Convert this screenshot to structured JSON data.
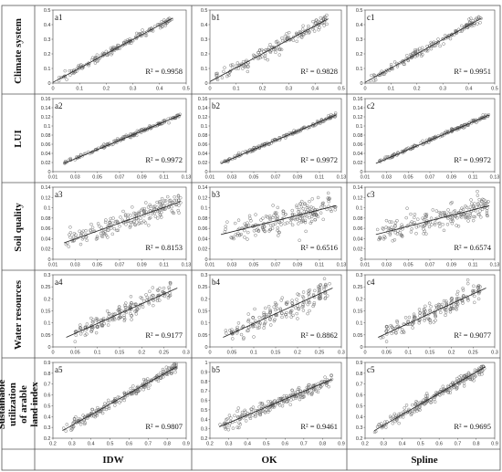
{
  "row_labels": [
    "Climate system",
    "LUI",
    "Soil quality",
    "Water resources",
    "Sustainable utilization of arable land index"
  ],
  "column_labels": [
    "IDW",
    "OK",
    "Spline"
  ],
  "chart_data": [
    {
      "type": "scatter",
      "panel": "a1",
      "r2": "R² = 0.9958",
      "x_ticks": [
        "0",
        "0.1",
        "0.2",
        "0.3",
        "0.4",
        "0.5"
      ],
      "y_ticks": [
        "0",
        "0.1",
        "0.2",
        "0.3",
        "0.4",
        "0.5"
      ],
      "xlim": [
        0,
        0.5
      ],
      "ylim": [
        0,
        0.5
      ],
      "fit": [
        [
          0,
          0.005
        ],
        [
          0.45,
          0.445
        ]
      ],
      "cloud": {
        "x_range": [
          0.02,
          0.45
        ],
        "slope": 0.98,
        "intercept": 0.005,
        "noise": 0.012,
        "n": 160
      }
    },
    {
      "type": "scatter",
      "panel": "b1",
      "r2": "R² = 0.9828",
      "x_ticks": [
        "0",
        "0.1",
        "0.2",
        "0.3",
        "0.4",
        "0.5"
      ],
      "y_ticks": [
        "0",
        "0.1",
        "0.2",
        "0.3",
        "0.4",
        "0.5"
      ],
      "xlim": [
        0,
        0.5
      ],
      "ylim": [
        0,
        0.5
      ],
      "fit": [
        [
          0,
          0.01
        ],
        [
          0.45,
          0.44
        ]
      ],
      "cloud": {
        "x_range": [
          0.02,
          0.45
        ],
        "slope": 0.96,
        "intercept": 0.01,
        "noise": 0.025,
        "n": 160
      }
    },
    {
      "type": "scatter",
      "panel": "c1",
      "r2": "R² = 0.9951",
      "x_ticks": [
        "0",
        "0.1",
        "0.2",
        "0.3",
        "0.4",
        "0.5"
      ],
      "y_ticks": [
        "0",
        "0.1",
        "0.2",
        "0.3",
        "0.4",
        "0.5"
      ],
      "xlim": [
        0,
        0.5
      ],
      "ylim": [
        0,
        0.5
      ],
      "fit": [
        [
          0,
          0.005
        ],
        [
          0.45,
          0.445
        ]
      ],
      "cloud": {
        "x_range": [
          0.02,
          0.45
        ],
        "slope": 0.98,
        "intercept": 0.005,
        "noise": 0.014,
        "n": 160
      }
    },
    {
      "type": "scatter",
      "panel": "a2",
      "r2": "R² = 0.9972",
      "x_ticks": [
        "0.01",
        "0.03",
        "0.05",
        "0.07",
        "0.09",
        "0.11",
        "0.13"
      ],
      "y_ticks": [
        "0",
        "0.02",
        "0.04",
        "0.06",
        "0.08",
        "0.1",
        "0.12",
        "0.14",
        "0.16"
      ],
      "xlim": [
        0.01,
        0.13
      ],
      "ylim": [
        0,
        0.16
      ],
      "fit": [
        [
          0.02,
          0.018
        ],
        [
          0.125,
          0.124
        ]
      ],
      "cloud": {
        "x_range": [
          0.02,
          0.125
        ],
        "slope": 1.0,
        "intercept": -0.001,
        "noise": 0.002,
        "n": 160
      }
    },
    {
      "type": "scatter",
      "panel": "b2",
      "r2": "R² = 0.9972",
      "x_ticks": [
        "0.01",
        "0.03",
        "0.05",
        "0.07",
        "0.09",
        "0.11",
        "0.13"
      ],
      "y_ticks": [
        "0",
        "0.02",
        "0.04",
        "0.06",
        "0.08",
        "0.1",
        "0.12",
        "0.14",
        "0.16"
      ],
      "xlim": [
        0.01,
        0.13
      ],
      "ylim": [
        0,
        0.16
      ],
      "fit": [
        [
          0.02,
          0.018
        ],
        [
          0.125,
          0.124
        ]
      ],
      "cloud": {
        "x_range": [
          0.02,
          0.125
        ],
        "slope": 1.0,
        "intercept": -0.001,
        "noise": 0.002,
        "n": 160
      }
    },
    {
      "type": "scatter",
      "panel": "c2",
      "r2": "R² = 0.9972",
      "x_ticks": [
        "0.01",
        "0.03",
        "0.05",
        "0.07",
        "0.09",
        "0.11",
        "0.13"
      ],
      "y_ticks": [
        "0",
        "0.02",
        "0.04",
        "0.06",
        "0.08",
        "0.1",
        "0.12",
        "0.14",
        "0.16"
      ],
      "xlim": [
        0.01,
        0.13
      ],
      "ylim": [
        0,
        0.16
      ],
      "fit": [
        [
          0.02,
          0.018
        ],
        [
          0.125,
          0.124
        ]
      ],
      "cloud": {
        "x_range": [
          0.02,
          0.125
        ],
        "slope": 1.0,
        "intercept": -0.001,
        "noise": 0.002,
        "n": 160
      }
    },
    {
      "type": "scatter",
      "panel": "a3",
      "r2": "R² = 0.8153",
      "x_ticks": [
        "0.01",
        "0.03",
        "0.05",
        "0.07",
        "0.09",
        "0.11",
        "0.13"
      ],
      "y_ticks": [
        "0",
        "0.02",
        "0.04",
        "0.06",
        "0.08",
        "0.1",
        "0.12",
        "0.14"
      ],
      "xlim": [
        0.01,
        0.13
      ],
      "ylim": [
        0,
        0.14
      ],
      "fit": [
        [
          0.02,
          0.032
        ],
        [
          0.125,
          0.112
        ]
      ],
      "cloud": {
        "x_range": [
          0.02,
          0.125
        ],
        "slope": 0.76,
        "intercept": 0.017,
        "noise": 0.009,
        "n": 200
      }
    },
    {
      "type": "scatter",
      "panel": "b3",
      "r2": "R² = 0.6516",
      "x_ticks": [
        "0.01",
        "0.03",
        "0.05",
        "0.07",
        "0.09",
        "0.11",
        "0.13"
      ],
      "y_ticks": [
        "0",
        "0.02",
        "0.04",
        "0.06",
        "0.08",
        "0.1",
        "0.12",
        "0.14"
      ],
      "xlim": [
        0.01,
        0.13
      ],
      "ylim": [
        0,
        0.14
      ],
      "fit": [
        [
          0.02,
          0.048
        ],
        [
          0.125,
          0.104
        ]
      ],
      "cloud": {
        "x_range": [
          0.02,
          0.125
        ],
        "slope": 0.53,
        "intercept": 0.037,
        "noise": 0.011,
        "n": 200
      }
    },
    {
      "type": "scatter",
      "panel": "c3",
      "r2": "R² = 0.6574",
      "x_ticks": [
        "0.01",
        "0.03",
        "0.05",
        "0.07",
        "0.09",
        "0.11",
        "0.13"
      ],
      "y_ticks": [
        "0",
        "0.02",
        "0.04",
        "0.06",
        "0.08",
        "0.1",
        "0.12",
        "0.14"
      ],
      "xlim": [
        0.01,
        0.13
      ],
      "ylim": [
        0,
        0.14
      ],
      "fit": [
        [
          0.02,
          0.048
        ],
        [
          0.125,
          0.104
        ]
      ],
      "cloud": {
        "x_range": [
          0.02,
          0.125
        ],
        "slope": 0.53,
        "intercept": 0.037,
        "noise": 0.011,
        "n": 200
      }
    },
    {
      "type": "scatter",
      "panel": "a4",
      "r2": "R² = 0.9177",
      "x_ticks": [
        "0",
        "0.05",
        "0.1",
        "0.15",
        "0.2",
        "0.25",
        "0.3"
      ],
      "y_ticks": [
        "0",
        "0.05",
        "0.1",
        "0.15",
        "0.2",
        "0.25",
        "0.3"
      ],
      "xlim": [
        0,
        0.3
      ],
      "ylim": [
        0,
        0.3
      ],
      "fit": [
        [
          0.03,
          0.04
        ],
        [
          0.28,
          0.245
        ]
      ],
      "cloud": {
        "x_range": [
          0.04,
          0.27
        ],
        "slope": 0.82,
        "intercept": 0.016,
        "noise": 0.018,
        "n": 180,
        "banded": true
      }
    },
    {
      "type": "scatter",
      "panel": "b4",
      "r2": "R² = 0.8862",
      "x_ticks": [
        "0",
        "0.05",
        "0.1",
        "0.15",
        "0.2",
        "0.25",
        "0.3"
      ],
      "y_ticks": [
        "0",
        "0.05",
        "0.1",
        "0.15",
        "0.2",
        "0.25",
        "0.3"
      ],
      "xlim": [
        0,
        0.3
      ],
      "ylim": [
        0,
        0.3
      ],
      "fit": [
        [
          0.03,
          0.04
        ],
        [
          0.28,
          0.245
        ]
      ],
      "cloud": {
        "x_range": [
          0.04,
          0.27
        ],
        "slope": 0.82,
        "intercept": 0.016,
        "noise": 0.022,
        "n": 180,
        "banded": true
      }
    },
    {
      "type": "scatter",
      "panel": "c4",
      "r2": "R² = 0.9077",
      "x_ticks": [
        "0",
        "0.05",
        "0.1",
        "0.15",
        "0.2",
        "0.25",
        "0.3"
      ],
      "y_ticks": [
        "0",
        "0.05",
        "0.1",
        "0.15",
        "0.2",
        "0.25",
        "0.3"
      ],
      "xlim": [
        0,
        0.3
      ],
      "ylim": [
        0,
        0.3
      ],
      "fit": [
        [
          0.03,
          0.04
        ],
        [
          0.28,
          0.245
        ]
      ],
      "cloud": {
        "x_range": [
          0.04,
          0.27
        ],
        "slope": 0.82,
        "intercept": 0.016,
        "noise": 0.019,
        "n": 180,
        "banded": true
      }
    },
    {
      "type": "scatter",
      "panel": "a5",
      "r2": "R² = 0.9807",
      "x_ticks": [
        "0.2",
        "0.3",
        "0.4",
        "0.5",
        "0.6",
        "0.7",
        "0.8",
        "0.9"
      ],
      "y_ticks": [
        "0.2",
        "0.3",
        "0.4",
        "0.5",
        "0.6",
        "0.7",
        "0.8",
        "0.9"
      ],
      "xlim": [
        0.2,
        0.9
      ],
      "ylim": [
        0.2,
        0.9
      ],
      "fit": [
        [
          0.25,
          0.27
        ],
        [
          0.85,
          0.86
        ]
      ],
      "cloud": {
        "x_range": [
          0.25,
          0.85
        ],
        "slope": 0.98,
        "intercept": 0.025,
        "noise": 0.022,
        "n": 220
      }
    },
    {
      "type": "scatter",
      "panel": "b5",
      "r2": "R² = 0.9461",
      "x_ticks": [
        "0.2",
        "0.3",
        "0.4",
        "0.5",
        "0.6",
        "0.7",
        "0.8",
        "0.9"
      ],
      "y_ticks": [
        "0.2",
        "0.3",
        "0.4",
        "0.5",
        "0.6",
        "0.7",
        "0.8",
        "0.9",
        "1"
      ],
      "xlim": [
        0.2,
        0.9
      ],
      "ylim": [
        0.2,
        1
      ],
      "fit": [
        [
          0.25,
          0.32
        ],
        [
          0.85,
          0.82
        ]
      ],
      "cloud": {
        "x_range": [
          0.25,
          0.85
        ],
        "slope": 0.83,
        "intercept": 0.11,
        "noise": 0.032,
        "n": 220
      }
    },
    {
      "type": "scatter",
      "panel": "c5",
      "r2": "R² = 0.9695",
      "x_ticks": [
        "0.2",
        "0.3",
        "0.4",
        "0.5",
        "0.6",
        "0.7",
        "0.8",
        "0.9"
      ],
      "y_ticks": [
        "0.2",
        "0.3",
        "0.4",
        "0.5",
        "0.6",
        "0.7",
        "0.8",
        "0.9"
      ],
      "xlim": [
        0.2,
        0.9
      ],
      "ylim": [
        0.2,
        0.9
      ],
      "fit": [
        [
          0.25,
          0.27
        ],
        [
          0.85,
          0.86
        ]
      ],
      "cloud": {
        "x_range": [
          0.25,
          0.85
        ],
        "slope": 0.98,
        "intercept": 0.025,
        "noise": 0.026,
        "n": 220
      }
    }
  ]
}
